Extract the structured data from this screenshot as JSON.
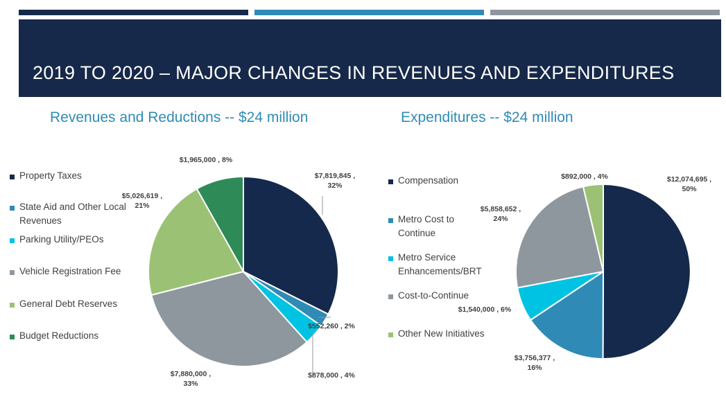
{
  "header": {
    "title": "2019 TO 2020 – MAJOR CHANGES IN REVENUES AND EXPENDITURES",
    "bar_colors": [
      "#14294b",
      "#2f8bb5",
      "#8f979e"
    ],
    "banner_color": "#17294a"
  },
  "chart_data": [
    {
      "type": "pie",
      "title": "Revenues and Reductions -- $24 million",
      "legend_position": "left",
      "categories": [
        "Property Taxes",
        "State Aid and Other Local Revenues",
        "Parking Utility/PEOs",
        "Vehicle Registration Fee",
        "General Debt Reserves",
        "Budget Reductions"
      ],
      "values": [
        7819845,
        552260,
        878000,
        7880000,
        5026619,
        1965000
      ],
      "percents": [
        32,
        2,
        4,
        33,
        21,
        8
      ],
      "data_labels": [
        "$7,819,845 ,|32%",
        "$552,260 , 2%",
        "$878,000 , 4%",
        "$7,880,000 ,|33%",
        "$5,026,619 ,|21%",
        "$1,965,000 , 8%"
      ],
      "colors": [
        "#14294b",
        "#2f8bb5",
        "#00c3e3",
        "#8f979e",
        "#9bc274",
        "#2e8b57"
      ]
    },
    {
      "type": "pie",
      "title": "Expenditures -- $24 million",
      "legend_position": "left",
      "categories": [
        "Compensation",
        "Metro Cost to Continue",
        "Metro Service Enhancements/BRT",
        "Cost-to-Continue",
        "Other New Initiatives"
      ],
      "values": [
        12074695,
        3756377,
        1540000,
        5858652,
        892000
      ],
      "percents": [
        50,
        16,
        6,
        24,
        4
      ],
      "data_labels": [
        "$12,074,695 ,|50%",
        "$3,756,377 ,|16%",
        "$1,540,000 , 6%",
        "$5,858,652 ,|24%",
        "$892,000 , 4%"
      ],
      "colors": [
        "#14294b",
        "#2f8bb5",
        "#00c3e3",
        "#8f979e",
        "#9bc274"
      ]
    }
  ]
}
